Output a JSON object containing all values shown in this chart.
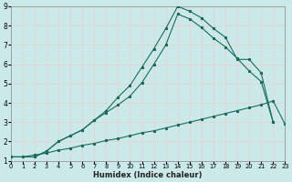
{
  "xlabel": "Humidex (Indice chaleur)",
  "background_color": "#cce9e9",
  "grid_color": "#d9eaea",
  "line_color": "#1a6b5e",
  "xlim": [
    0,
    23
  ],
  "ylim": [
    1,
    9
  ],
  "yticks": [
    1,
    2,
    3,
    4,
    5,
    6,
    7,
    8,
    9
  ],
  "xticks": [
    0,
    1,
    2,
    3,
    4,
    5,
    6,
    7,
    8,
    9,
    10,
    11,
    12,
    13,
    14,
    15,
    16,
    17,
    18,
    19,
    20,
    21,
    22,
    23
  ],
  "line1_x": [
    0,
    1,
    2,
    3,
    4,
    5,
    6,
    7,
    8,
    9,
    10,
    11,
    12,
    13,
    14,
    15,
    16,
    17,
    18,
    19,
    20,
    21,
    22,
    23
  ],
  "line1_y": [
    1.2,
    1.2,
    1.3,
    1.4,
    1.55,
    1.65,
    1.8,
    1.9,
    2.05,
    2.15,
    2.3,
    2.45,
    2.55,
    2.7,
    2.85,
    3.0,
    3.15,
    3.3,
    3.45,
    3.6,
    3.75,
    3.9,
    4.1,
    2.9
  ],
  "line2_x": [
    0,
    2,
    3,
    4,
    5,
    6,
    7,
    8,
    9,
    10,
    11,
    12,
    13,
    14,
    15,
    16,
    17,
    18,
    19,
    20,
    21,
    22
  ],
  "line2_y": [
    1.2,
    1.2,
    1.5,
    2.0,
    2.3,
    2.6,
    3.1,
    3.5,
    3.9,
    4.35,
    5.05,
    6.0,
    7.0,
    8.6,
    8.35,
    7.9,
    7.35,
    6.9,
    6.3,
    5.65,
    5.1,
    3.0
  ],
  "line3_x": [
    0,
    2,
    3,
    4,
    5,
    6,
    7,
    8,
    9,
    10,
    11,
    12,
    13,
    14,
    15,
    16,
    17,
    18,
    19,
    20,
    21,
    22
  ],
  "line3_y": [
    1.2,
    1.2,
    1.5,
    2.0,
    2.3,
    2.6,
    3.1,
    3.6,
    4.3,
    4.9,
    5.85,
    6.8,
    7.85,
    9.0,
    8.75,
    8.4,
    7.85,
    7.4,
    6.25,
    6.25,
    5.55,
    3.0
  ],
  "xlabel_fontsize": 6.0,
  "tick_fontsize_x": 4.8,
  "tick_fontsize_y": 5.5,
  "linewidth": 0.8,
  "markersize": 2.0
}
